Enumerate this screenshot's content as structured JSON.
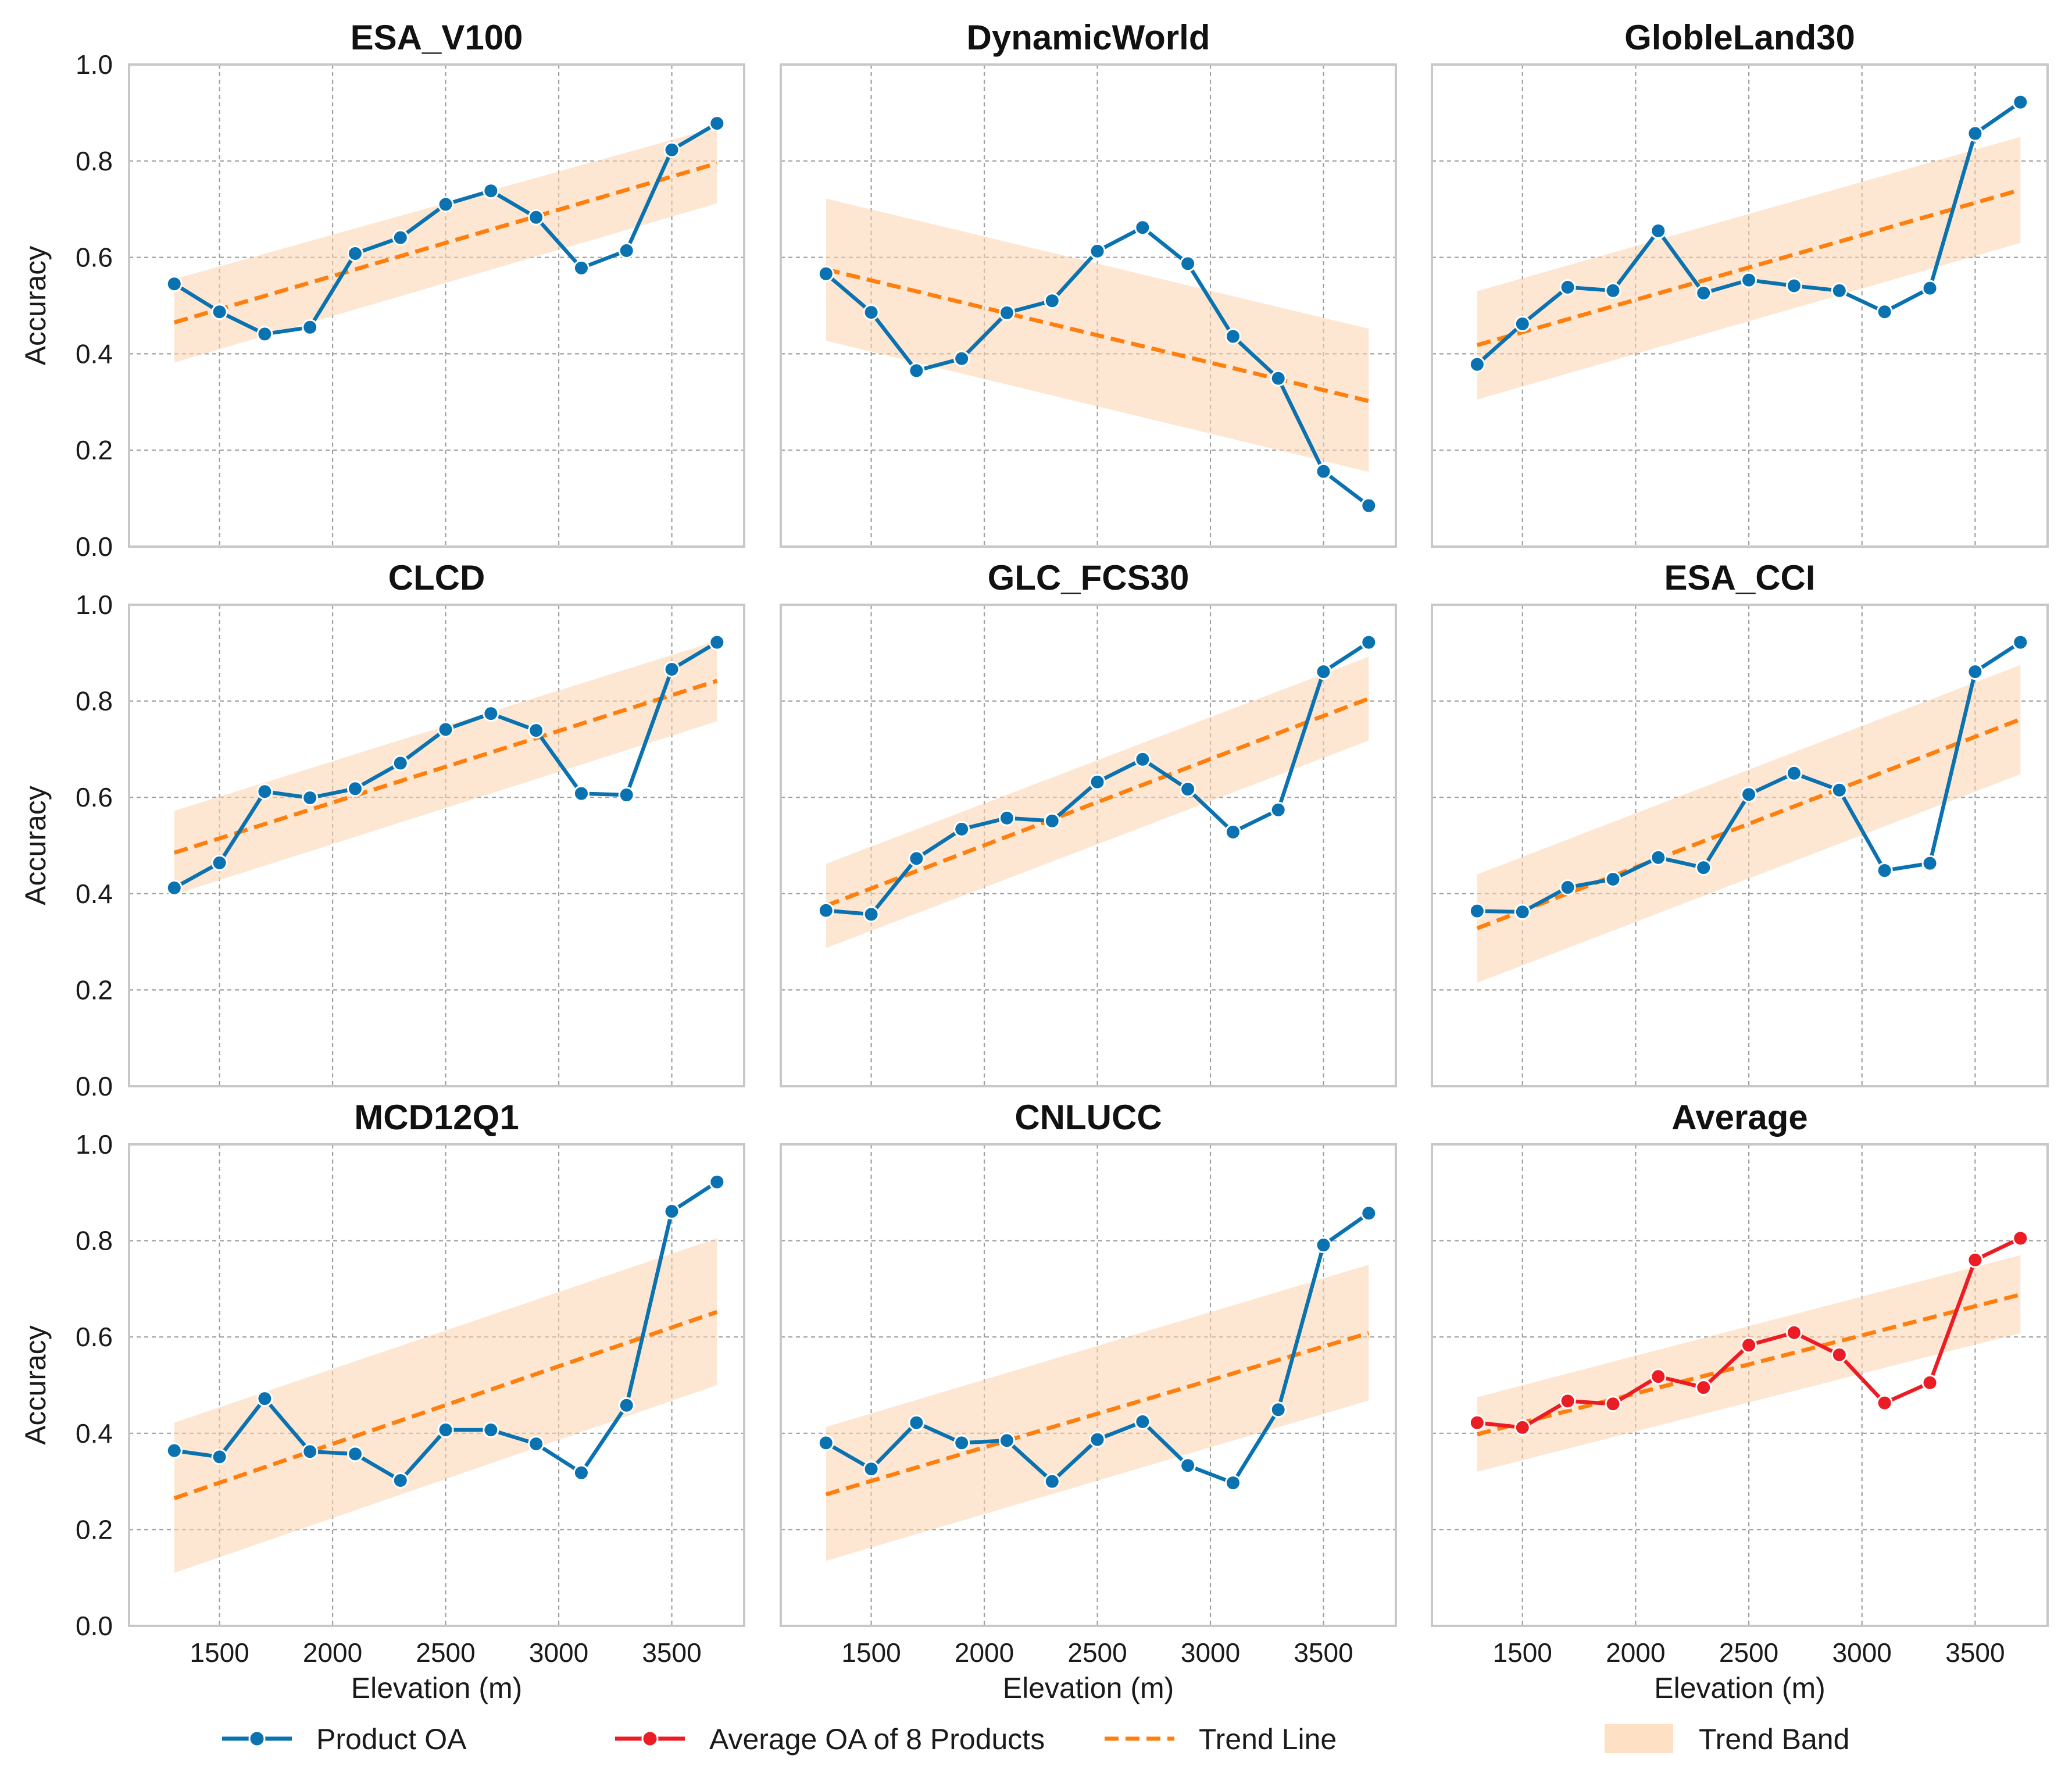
{
  "colors": {
    "product": "#0a72b0",
    "average": "#ec1c24",
    "trend": "#ff7f0e",
    "band": "#fdd3ad",
    "average_title": "#ff0000"
  },
  "chart_data": {
    "type": "line",
    "layout": "3x3 grid of subplots",
    "x": [
      1300,
      1500,
      1700,
      1900,
      2100,
      2300,
      2500,
      2700,
      2900,
      3100,
      3300,
      3500,
      3700
    ],
    "xlabel": "Elevation (m)",
    "ylabel": "Accuracy",
    "xlim": [
      1100,
      3820
    ],
    "ylim": [
      0.0,
      1.0
    ],
    "xticks": [
      1500,
      2000,
      2500,
      3000,
      3500
    ],
    "xtick_labels": [
      "1500",
      "2000",
      "2500",
      "3000",
      "3500"
    ],
    "yticks": [
      0.0,
      0.2,
      0.4,
      0.6,
      0.8,
      1.0
    ],
    "ytick_labels": [
      "0.0",
      "0.2",
      "0.4",
      "0.6",
      "0.8",
      "1.0"
    ],
    "grid": true,
    "legend": {
      "placement": "bottom-center",
      "entries": [
        {
          "label": "Product OA",
          "kind": "line-marker",
          "color": "#0a72b0"
        },
        {
          "label": "Average OA of 8 Products",
          "kind": "line-marker",
          "color": "#ec1c24"
        },
        {
          "label": "Trend Line",
          "kind": "dashed",
          "color": "#ff7f0e"
        },
        {
          "label": "Trend Band",
          "kind": "patch",
          "color": "#fdd3ad"
        }
      ]
    },
    "panels": [
      {
        "title": "ESA_V100",
        "series": "Product OA",
        "values": [
          0.545,
          0.487,
          0.441,
          0.455,
          0.608,
          0.641,
          0.71,
          0.738,
          0.683,
          0.578,
          0.614,
          0.823,
          0.878
        ],
        "trend": [
          0.465,
          0.795
        ],
        "band_upper": [
          0.555,
          0.87
        ],
        "band_lower": [
          0.382,
          0.712
        ]
      },
      {
        "title": "DynamicWorld",
        "series": "Product OA",
        "values": [
          0.566,
          0.486,
          0.365,
          0.39,
          0.485,
          0.51,
          0.613,
          0.662,
          0.587,
          0.436,
          0.349,
          0.156,
          0.085
        ],
        "trend": [
          0.575,
          0.302
        ],
        "band_upper": [
          0.722,
          0.452
        ],
        "band_lower": [
          0.427,
          0.155
        ]
      },
      {
        "title": "GlobleLand30",
        "series": "Product OA",
        "values": [
          0.378,
          0.462,
          0.538,
          0.531,
          0.655,
          0.526,
          0.553,
          0.541,
          0.531,
          0.487,
          0.536,
          0.857,
          0.922
        ],
        "trend": [
          0.418,
          0.74
        ],
        "band_upper": [
          0.53,
          0.85
        ],
        "band_lower": [
          0.305,
          0.63
        ]
      },
      {
        "title": "CLCD",
        "series": "Product OA",
        "values": [
          0.412,
          0.464,
          0.612,
          0.599,
          0.618,
          0.671,
          0.741,
          0.774,
          0.739,
          0.608,
          0.605,
          0.866,
          0.922
        ],
        "trend": [
          0.485,
          0.842
        ],
        "band_upper": [
          0.572,
          0.925
        ],
        "band_lower": [
          0.398,
          0.758
        ]
      },
      {
        "title": "GLC_FCS30",
        "series": "Product OA",
        "values": [
          0.365,
          0.357,
          0.473,
          0.534,
          0.557,
          0.551,
          0.632,
          0.679,
          0.617,
          0.528,
          0.574,
          0.861,
          0.922
        ],
        "trend": [
          0.375,
          0.805
        ],
        "band_upper": [
          0.462,
          0.892
        ],
        "band_lower": [
          0.287,
          0.718
        ]
      },
      {
        "title": "ESA_CCI",
        "series": "Product OA",
        "values": [
          0.364,
          0.362,
          0.413,
          0.43,
          0.475,
          0.454,
          0.606,
          0.65,
          0.615,
          0.448,
          0.463,
          0.861,
          0.922
        ],
        "trend": [
          0.328,
          0.762
        ],
        "band_upper": [
          0.44,
          0.875
        ],
        "band_lower": [
          0.215,
          0.648
        ]
      },
      {
        "title": "MCD12Q1",
        "series": "Product OA",
        "values": [
          0.364,
          0.351,
          0.472,
          0.362,
          0.357,
          0.302,
          0.407,
          0.407,
          0.378,
          0.318,
          0.458,
          0.861,
          0.922
        ],
        "trend": [
          0.265,
          0.652
        ],
        "band_upper": [
          0.422,
          0.805
        ],
        "band_lower": [
          0.11,
          0.5
        ]
      },
      {
        "title": "CNLUCC",
        "series": "Product OA",
        "values": [
          0.38,
          0.326,
          0.422,
          0.38,
          0.385,
          0.3,
          0.387,
          0.424,
          0.333,
          0.297,
          0.449,
          0.791,
          0.857
        ],
        "trend": [
          0.273,
          0.608
        ],
        "band_upper": [
          0.413,
          0.75
        ],
        "band_lower": [
          0.135,
          0.468
        ]
      },
      {
        "title": "Average",
        "series": "Average OA of 8 Products",
        "values": [
          0.422,
          0.412,
          0.467,
          0.461,
          0.518,
          0.495,
          0.583,
          0.609,
          0.563,
          0.463,
          0.505,
          0.76,
          0.805
        ],
        "trend": [
          0.398,
          0.688
        ],
        "band_upper": [
          0.475,
          0.77
        ],
        "band_lower": [
          0.32,
          0.608
        ]
      }
    ]
  }
}
